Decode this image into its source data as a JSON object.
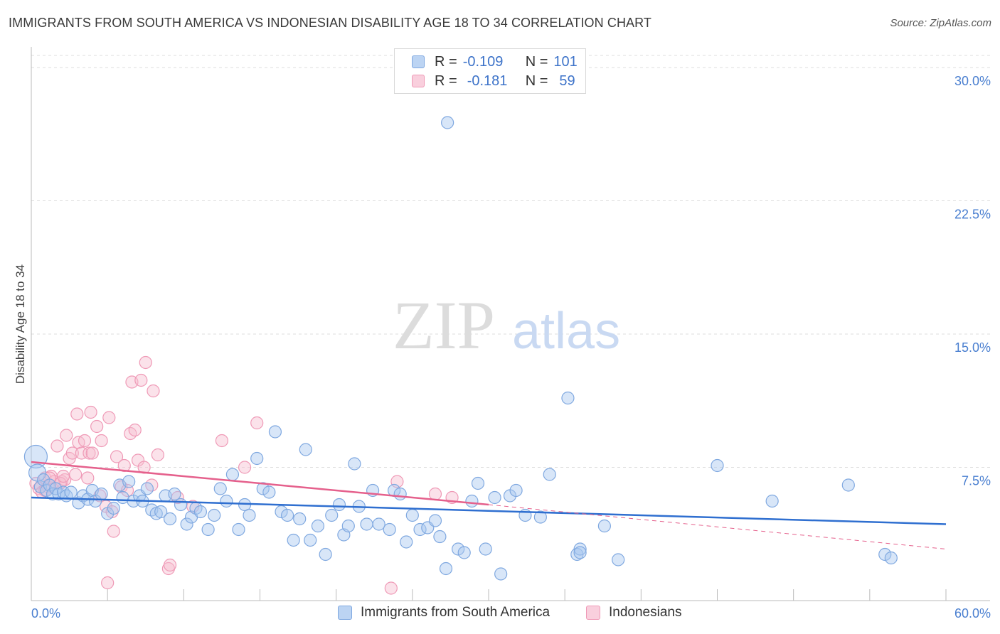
{
  "title": "IMMIGRANTS FROM SOUTH AMERICA VS INDONESIAN DISABILITY AGE 18 TO 34 CORRELATION CHART",
  "source": "Source: ZipAtlas.com",
  "watermark": {
    "zip": "ZIP",
    "atlas": "atlas"
  },
  "legend": {
    "r_label": "R =",
    "n_label": "N =",
    "series1": {
      "r": "-0.109",
      "n": "101"
    },
    "series2": {
      "r": "-0.181",
      "n": "59"
    }
  },
  "colors": {
    "blue_fill": "#a9c7ef",
    "blue_stroke": "#7fa8e0",
    "blue_line": "#2f6fd0",
    "pink_fill": "#f7bfd1",
    "pink_stroke": "#ef99b6",
    "pink_line": "#e5608c",
    "tick": "#4a7fd0",
    "grid": "#dcdcdc"
  },
  "chart_data": {
    "type": "scatter",
    "title": "IMMIGRANTS FROM SOUTH AMERICA VS INDONESIAN DISABILITY AGE 18 TO 34 CORRELATION CHART",
    "xlabel": "",
    "ylabel": "Disability Age 18 to 34",
    "xlim": [
      0,
      60
    ],
    "ylim": [
      0,
      31
    ],
    "x_tick_labels": [
      "0.0%",
      "60.0%"
    ],
    "y_ticks": [
      7.5,
      15.0,
      22.5,
      30.0
    ],
    "y_tick_labels": [
      "7.5%",
      "15.0%",
      "22.5%",
      "30.0%"
    ],
    "series": [
      {
        "name": "Immigrants from South America",
        "color": "#7fa8e0",
        "trend": {
          "x0": 0,
          "y0": 5.8,
          "x1": 60,
          "y1": 4.3
        },
        "points": [
          [
            0.3,
            8.1
          ],
          [
            0.4,
            7.2
          ],
          [
            0.6,
            6.4
          ],
          [
            0.8,
            6.8
          ],
          [
            1.0,
            6.2
          ],
          [
            1.2,
            6.5
          ],
          [
            1.4,
            6.0
          ],
          [
            1.6,
            6.3
          ],
          [
            1.8,
            6.0
          ],
          [
            2.1,
            6.1
          ],
          [
            2.3,
            5.9
          ],
          [
            2.6,
            6.1
          ],
          [
            3.1,
            5.5
          ],
          [
            3.4,
            5.9
          ],
          [
            3.7,
            5.7
          ],
          [
            4.0,
            6.2
          ],
          [
            4.2,
            5.6
          ],
          [
            4.6,
            6.0
          ],
          [
            5.0,
            4.9
          ],
          [
            5.4,
            5.2
          ],
          [
            5.8,
            6.5
          ],
          [
            6.0,
            5.8
          ],
          [
            6.4,
            6.7
          ],
          [
            6.7,
            5.6
          ],
          [
            7.1,
            5.9
          ],
          [
            7.3,
            5.6
          ],
          [
            7.6,
            6.3
          ],
          [
            7.9,
            5.1
          ],
          [
            8.2,
            4.9
          ],
          [
            8.5,
            5.0
          ],
          [
            8.8,
            5.9
          ],
          [
            9.1,
            4.6
          ],
          [
            9.4,
            6.0
          ],
          [
            9.8,
            5.4
          ],
          [
            10.2,
            4.3
          ],
          [
            10.5,
            4.7
          ],
          [
            10.8,
            5.2
          ],
          [
            11.1,
            5.0
          ],
          [
            11.6,
            4.0
          ],
          [
            12.0,
            4.8
          ],
          [
            12.4,
            6.3
          ],
          [
            12.8,
            5.6
          ],
          [
            13.2,
            7.1
          ],
          [
            13.6,
            4.0
          ],
          [
            14.0,
            5.4
          ],
          [
            14.3,
            4.8
          ],
          [
            14.8,
            8.0
          ],
          [
            15.2,
            6.3
          ],
          [
            15.6,
            6.1
          ],
          [
            16.0,
            9.5
          ],
          [
            16.4,
            5.0
          ],
          [
            16.8,
            4.8
          ],
          [
            17.2,
            3.4
          ],
          [
            17.6,
            4.6
          ],
          [
            18.0,
            8.5
          ],
          [
            18.3,
            3.4
          ],
          [
            18.8,
            4.2
          ],
          [
            19.3,
            2.6
          ],
          [
            19.7,
            4.8
          ],
          [
            20.2,
            5.4
          ],
          [
            20.5,
            3.7
          ],
          [
            20.8,
            4.2
          ],
          [
            21.2,
            7.7
          ],
          [
            21.5,
            5.3
          ],
          [
            22.0,
            4.3
          ],
          [
            22.4,
            6.2
          ],
          [
            22.8,
            4.3
          ],
          [
            23.5,
            4.0
          ],
          [
            23.8,
            6.2
          ],
          [
            24.2,
            6.0
          ],
          [
            24.6,
            3.3
          ],
          [
            25.0,
            4.8
          ],
          [
            25.5,
            4.0
          ],
          [
            26.0,
            4.1
          ],
          [
            26.5,
            4.5
          ],
          [
            26.8,
            3.6
          ],
          [
            27.2,
            1.8
          ],
          [
            28.0,
            2.9
          ],
          [
            28.4,
            2.7
          ],
          [
            28.9,
            5.6
          ],
          [
            29.3,
            6.6
          ],
          [
            29.8,
            2.9
          ],
          [
            30.4,
            5.8
          ],
          [
            30.8,
            1.5
          ],
          [
            31.4,
            5.9
          ],
          [
            31.8,
            6.2
          ],
          [
            32.4,
            4.8
          ],
          [
            33.4,
            4.7
          ],
          [
            34.0,
            7.1
          ],
          [
            35.2,
            11.4
          ],
          [
            35.8,
            2.6
          ],
          [
            36.0,
            2.9
          ],
          [
            37.6,
            4.2
          ],
          [
            38.5,
            2.3
          ],
          [
            45.0,
            7.6
          ],
          [
            48.6,
            5.6
          ],
          [
            53.6,
            6.5
          ],
          [
            56.0,
            2.6
          ],
          [
            56.4,
            2.4
          ],
          [
            27.3,
            26.9
          ],
          [
            36.0,
            2.7
          ]
        ]
      },
      {
        "name": "Indonesians",
        "color": "#ef99b6",
        "trend": {
          "x0": 0,
          "y0": 7.8,
          "x1": 30,
          "y1": 5.4
        },
        "trend_ext": {
          "x0": 30,
          "y0": 5.4,
          "x1": 60,
          "y1": 2.9
        },
        "points": [
          [
            0.3,
            6.6
          ],
          [
            0.5,
            6.3
          ],
          [
            0.7,
            6.1
          ],
          [
            0.9,
            6.9
          ],
          [
            1.1,
            6.4
          ],
          [
            1.3,
            7.0
          ],
          [
            1.5,
            6.7
          ],
          [
            1.7,
            8.7
          ],
          [
            2.0,
            6.7
          ],
          [
            2.2,
            6.8
          ],
          [
            2.3,
            9.3
          ],
          [
            2.5,
            8.0
          ],
          [
            2.7,
            8.3
          ],
          [
            2.9,
            7.1
          ],
          [
            3.0,
            10.5
          ],
          [
            3.1,
            8.9
          ],
          [
            3.3,
            8.3
          ],
          [
            3.5,
            9.0
          ],
          [
            3.7,
            6.9
          ],
          [
            3.8,
            8.3
          ],
          [
            3.9,
            10.6
          ],
          [
            4.0,
            8.3
          ],
          [
            4.3,
            9.8
          ],
          [
            4.5,
            5.9
          ],
          [
            4.6,
            9.0
          ],
          [
            4.9,
            5.3
          ],
          [
            5.1,
            10.3
          ],
          [
            5.3,
            5.0
          ],
          [
            5.4,
            3.9
          ],
          [
            5.6,
            8.1
          ],
          [
            5.9,
            6.4
          ],
          [
            6.1,
            7.6
          ],
          [
            6.3,
            6.2
          ],
          [
            6.5,
            9.4
          ],
          [
            6.6,
            12.3
          ],
          [
            6.8,
            9.6
          ],
          [
            7.0,
            7.9
          ],
          [
            7.2,
            12.4
          ],
          [
            7.4,
            7.5
          ],
          [
            7.5,
            13.4
          ],
          [
            7.9,
            6.5
          ],
          [
            8.0,
            11.8
          ],
          [
            8.3,
            8.2
          ],
          [
            9.0,
            1.8
          ],
          [
            9.1,
            2.0
          ],
          [
            9.6,
            5.8
          ],
          [
            10.6,
            5.3
          ],
          [
            12.5,
            9.0
          ],
          [
            14.0,
            7.5
          ],
          [
            14.8,
            10.0
          ],
          [
            23.6,
            0.7
          ],
          [
            24.0,
            6.7
          ],
          [
            26.5,
            6.0
          ],
          [
            27.6,
            5.8
          ],
          [
            5.0,
            1.0
          ],
          [
            0.9,
            6.2
          ],
          [
            1.9,
            6.6
          ],
          [
            2.1,
            7.0
          ],
          [
            1.2,
            6.9
          ]
        ]
      }
    ]
  },
  "bottom_legend": {
    "series1": "Immigrants from South America",
    "series2": "Indonesians"
  }
}
